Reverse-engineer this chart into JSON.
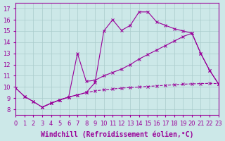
{
  "xlabel": "Windchill (Refroidissement éolien,°C)",
  "background_color": "#cce8e8",
  "grid_color": "#aacccc",
  "line_color": "#990099",
  "xlim": [
    0,
    23
  ],
  "ylim": [
    7.5,
    17.5
  ],
  "xticks": [
    0,
    1,
    2,
    3,
    4,
    5,
    6,
    7,
    8,
    9,
    10,
    11,
    12,
    13,
    14,
    15,
    16,
    17,
    18,
    19,
    20,
    21,
    22,
    23
  ],
  "yticks": [
    8,
    9,
    10,
    11,
    12,
    13,
    14,
    15,
    16,
    17
  ],
  "series_dashed_x": [
    0,
    1,
    2,
    3,
    4,
    5,
    6,
    7,
    8,
    9,
    10,
    11,
    12,
    13,
    14,
    15,
    16,
    17,
    18,
    19,
    20,
    21,
    22,
    23
  ],
  "series_dashed_y": [
    9.9,
    9.15,
    8.7,
    8.2,
    8.55,
    8.85,
    9.1,
    9.3,
    9.5,
    9.65,
    9.75,
    9.82,
    9.9,
    9.95,
    10.0,
    10.05,
    10.1,
    10.15,
    10.2,
    10.25,
    10.28,
    10.3,
    10.32,
    10.3
  ],
  "series_main_x": [
    0,
    1,
    2,
    3,
    4,
    5,
    6,
    7,
    8,
    9,
    10,
    11,
    12,
    13,
    14,
    15,
    16,
    17,
    18,
    19,
    20,
    21,
    22,
    23
  ],
  "series_main_y": [
    9.9,
    9.15,
    8.7,
    8.2,
    8.55,
    8.85,
    9.1,
    9.3,
    9.5,
    10.4,
    15.0,
    16.0,
    15.05,
    15.5,
    16.7,
    16.7,
    15.8,
    15.5,
    15.2,
    15.0,
    14.8,
    13.0,
    11.5,
    10.3
  ],
  "series_diag_x": [
    3,
    4,
    5,
    6,
    7,
    8,
    9,
    10,
    11,
    12,
    13,
    14,
    15,
    16,
    17,
    18,
    19,
    20,
    21,
    22,
    23
  ],
  "series_diag_y": [
    8.2,
    8.55,
    8.85,
    9.1,
    13.0,
    10.5,
    10.6,
    11.0,
    11.3,
    11.6,
    12.0,
    12.5,
    12.9,
    13.3,
    13.7,
    14.1,
    14.5,
    14.8,
    13.0,
    11.5,
    10.3
  ],
  "fontsize_tick": 6,
  "fontsize_label": 7
}
